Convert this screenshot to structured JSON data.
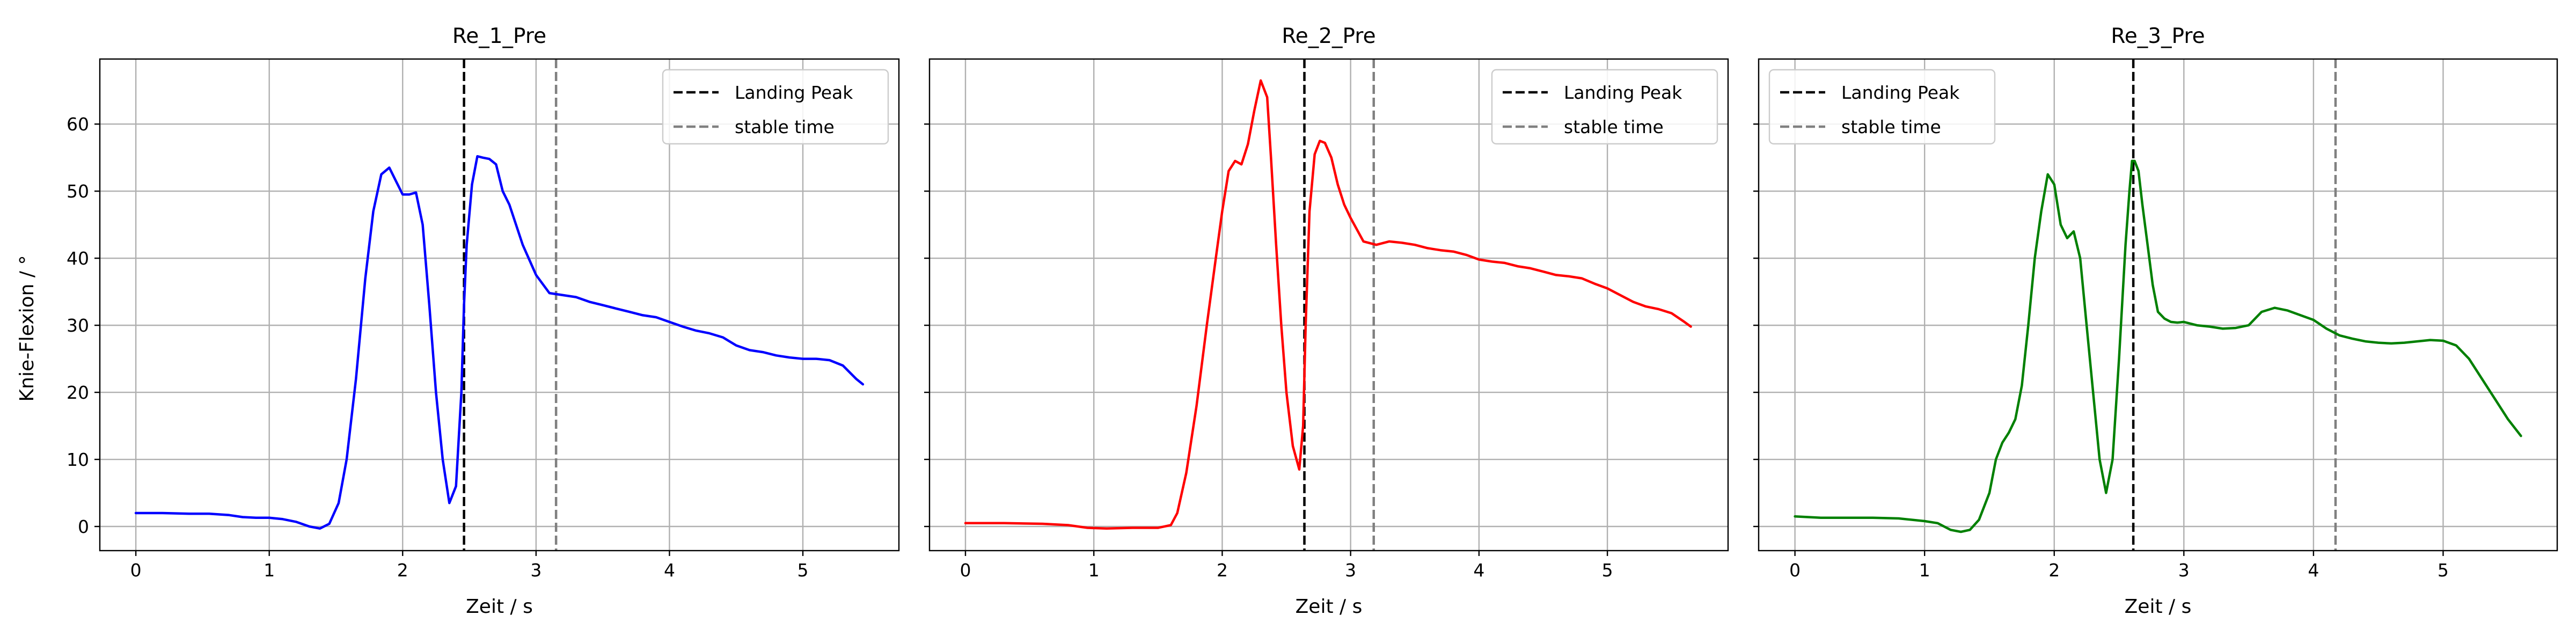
{
  "figure": {
    "shared_ylabel": "Knie-Flexion / °"
  },
  "chart_data": [
    {
      "type": "line",
      "title": "Re_1_Pre",
      "xlabel": "Zeit / s",
      "ylabel": "Knie-Flexion / °",
      "xlim": [
        -0.27,
        5.72
      ],
      "ylim": [
        -3.6,
        69.7
      ],
      "xticks": [
        0,
        1,
        2,
        3,
        4,
        5
      ],
      "yticks": [
        0,
        10,
        20,
        30,
        40,
        50,
        60
      ],
      "grid": true,
      "legend_position": "top-right",
      "legend": [
        {
          "label": "Landing Peak",
          "color": "#000000",
          "style": "dashed"
        },
        {
          "label": "stable time",
          "color": "#808080",
          "style": "dashed"
        }
      ],
      "vlines": [
        {
          "name": "Landing Peak",
          "x": 2.46,
          "color": "#000000"
        },
        {
          "name": "stable time",
          "x": 3.15,
          "color": "#808080"
        }
      ],
      "series": [
        {
          "name": "Re_1_Pre",
          "color": "#0000ff",
          "x": [
            0,
            0.2,
            0.4,
            0.55,
            0.7,
            0.8,
            0.9,
            1.0,
            1.1,
            1.2,
            1.3,
            1.38,
            1.45,
            1.52,
            1.58,
            1.65,
            1.72,
            1.78,
            1.84,
            1.9,
            1.95,
            2.0,
            2.05,
            2.1,
            2.15,
            2.2,
            2.25,
            2.3,
            2.35,
            2.4,
            2.44,
            2.46,
            2.48,
            2.52,
            2.56,
            2.6,
            2.65,
            2.7,
            2.75,
            2.8,
            2.9,
            3.0,
            3.1,
            3.2,
            3.3,
            3.4,
            3.5,
            3.6,
            3.7,
            3.8,
            3.9,
            4.0,
            4.1,
            4.2,
            4.3,
            4.4,
            4.5,
            4.6,
            4.7,
            4.8,
            4.9,
            5.0,
            5.1,
            5.2,
            5.3,
            5.4,
            5.45
          ],
          "y": [
            2.0,
            2.0,
            1.9,
            1.9,
            1.7,
            1.4,
            1.3,
            1.3,
            1.1,
            0.7,
            0.0,
            -0.3,
            0.4,
            3.5,
            10.0,
            22.0,
            37.0,
            47.0,
            52.5,
            53.5,
            51.5,
            49.5,
            49.5,
            49.8,
            45.0,
            33.0,
            20.0,
            10.0,
            3.5,
            6.0,
            20.0,
            33.0,
            42.0,
            51.0,
            55.2,
            55.0,
            54.8,
            54.0,
            50.0,
            48.0,
            42.0,
            37.5,
            34.8,
            34.5,
            34.2,
            33.5,
            33.0,
            32.5,
            32.0,
            31.5,
            31.2,
            30.5,
            29.8,
            29.2,
            28.8,
            28.2,
            27.0,
            26.3,
            26.0,
            25.5,
            25.2,
            25.0,
            25.0,
            24.8,
            24.0,
            22.0,
            21.2
          ]
        }
      ]
    },
    {
      "type": "line",
      "title": "Re_2_Pre",
      "xlabel": "Zeit / s",
      "ylabel": "",
      "xlim": [
        -0.28,
        5.94
      ],
      "ylim": [
        -3.6,
        69.7
      ],
      "xticks": [
        0,
        1,
        2,
        3,
        4,
        5
      ],
      "yticks": [
        0,
        10,
        20,
        30,
        40,
        50,
        60
      ],
      "grid": true,
      "legend_position": "top-right",
      "legend": [
        {
          "label": "Landing Peak",
          "color": "#000000",
          "style": "dashed"
        },
        {
          "label": "stable time",
          "color": "#808080",
          "style": "dashed"
        }
      ],
      "vlines": [
        {
          "name": "Landing Peak",
          "x": 2.64,
          "color": "#000000"
        },
        {
          "name": "stable time",
          "x": 3.18,
          "color": "#808080"
        }
      ],
      "series": [
        {
          "name": "Re_2_Pre",
          "color": "#ff0000",
          "x": [
            0,
            0.3,
            0.6,
            0.8,
            0.95,
            1.1,
            1.3,
            1.5,
            1.6,
            1.65,
            1.72,
            1.8,
            1.88,
            1.95,
            2.0,
            2.05,
            2.1,
            2.15,
            2.2,
            2.25,
            2.3,
            2.35,
            2.38,
            2.42,
            2.46,
            2.5,
            2.55,
            2.6,
            2.63,
            2.65,
            2.68,
            2.72,
            2.76,
            2.8,
            2.85,
            2.9,
            2.95,
            3.0,
            3.1,
            3.2,
            3.3,
            3.4,
            3.5,
            3.6,
            3.7,
            3.8,
            3.9,
            4.0,
            4.1,
            4.2,
            4.3,
            4.4,
            4.5,
            4.6,
            4.7,
            4.8,
            4.9,
            5.0,
            5.1,
            5.2,
            5.3,
            5.4,
            5.5,
            5.6,
            5.65
          ],
          "y": [
            0.5,
            0.5,
            0.4,
            0.2,
            -0.2,
            -0.3,
            -0.2,
            -0.2,
            0.2,
            2.0,
            8.0,
            18.0,
            30.0,
            40.0,
            47.0,
            53.0,
            54.5,
            54.0,
            57.0,
            62.0,
            66.5,
            64.0,
            55.0,
            42.0,
            30.0,
            20.0,
            12.0,
            8.5,
            15.0,
            30.0,
            47.0,
            55.5,
            57.5,
            57.2,
            55.0,
            51.0,
            48.0,
            46.0,
            42.5,
            42.0,
            42.5,
            42.3,
            42.0,
            41.5,
            41.2,
            41.0,
            40.5,
            39.8,
            39.5,
            39.3,
            38.8,
            38.5,
            38.0,
            37.5,
            37.3,
            37.0,
            36.2,
            35.5,
            34.5,
            33.5,
            32.8,
            32.4,
            31.8,
            30.5,
            29.8
          ]
        }
      ]
    },
    {
      "type": "line",
      "title": "Re_3_Pre",
      "xlabel": "Zeit / s",
      "ylabel": "",
      "xlim": [
        -0.28,
        5.88
      ],
      "ylim": [
        -3.6,
        69.7
      ],
      "xticks": [
        0,
        1,
        2,
        3,
        4,
        5
      ],
      "yticks": [
        0,
        10,
        20,
        30,
        40,
        50,
        60
      ],
      "grid": true,
      "legend_position": "top-left",
      "legend": [
        {
          "label": "Landing Peak",
          "color": "#000000",
          "style": "dashed"
        },
        {
          "label": "stable time",
          "color": "#808080",
          "style": "dashed"
        }
      ],
      "vlines": [
        {
          "name": "Landing Peak",
          "x": 2.61,
          "color": "#000000"
        },
        {
          "name": "stable time",
          "x": 4.17,
          "color": "#808080"
        }
      ],
      "series": [
        {
          "name": "Re_3_Pre",
          "color": "#008000",
          "x": [
            0,
            0.2,
            0.4,
            0.6,
            0.8,
            1.0,
            1.1,
            1.2,
            1.28,
            1.35,
            1.42,
            1.5,
            1.55,
            1.6,
            1.65,
            1.7,
            1.75,
            1.8,
            1.85,
            1.9,
            1.95,
            2.0,
            2.05,
            2.1,
            2.15,
            2.2,
            2.25,
            2.3,
            2.35,
            2.4,
            2.45,
            2.5,
            2.55,
            2.58,
            2.6,
            2.62,
            2.65,
            2.68,
            2.72,
            2.76,
            2.8,
            2.85,
            2.9,
            2.95,
            3.0,
            3.1,
            3.2,
            3.3,
            3.4,
            3.5,
            3.6,
            3.7,
            3.8,
            3.9,
            4.0,
            4.1,
            4.2,
            4.3,
            4.4,
            4.5,
            4.6,
            4.7,
            4.8,
            4.9,
            5.0,
            5.1,
            5.2,
            5.3,
            5.4,
            5.5,
            5.6
          ],
          "y": [
            1.5,
            1.3,
            1.3,
            1.3,
            1.2,
            0.8,
            0.5,
            -0.5,
            -0.8,
            -0.5,
            1.0,
            5.0,
            10.0,
            12.5,
            14.0,
            16.0,
            21.0,
            30.0,
            40.0,
            47.0,
            52.5,
            51.0,
            45.0,
            43.0,
            44.0,
            40.0,
            30.0,
            20.0,
            10.0,
            5.0,
            10.0,
            25.0,
            42.0,
            50.0,
            54.5,
            54.5,
            53.0,
            48.0,
            42.0,
            36.0,
            32.0,
            31.0,
            30.5,
            30.4,
            30.5,
            30.0,
            29.8,
            29.5,
            29.6,
            30.0,
            32.0,
            32.6,
            32.2,
            31.5,
            30.8,
            29.5,
            28.5,
            28.0,
            27.6,
            27.4,
            27.3,
            27.4,
            27.6,
            27.8,
            27.7,
            27.0,
            25.0,
            22.0,
            19.0,
            16.0,
            13.5
          ]
        }
      ]
    }
  ]
}
